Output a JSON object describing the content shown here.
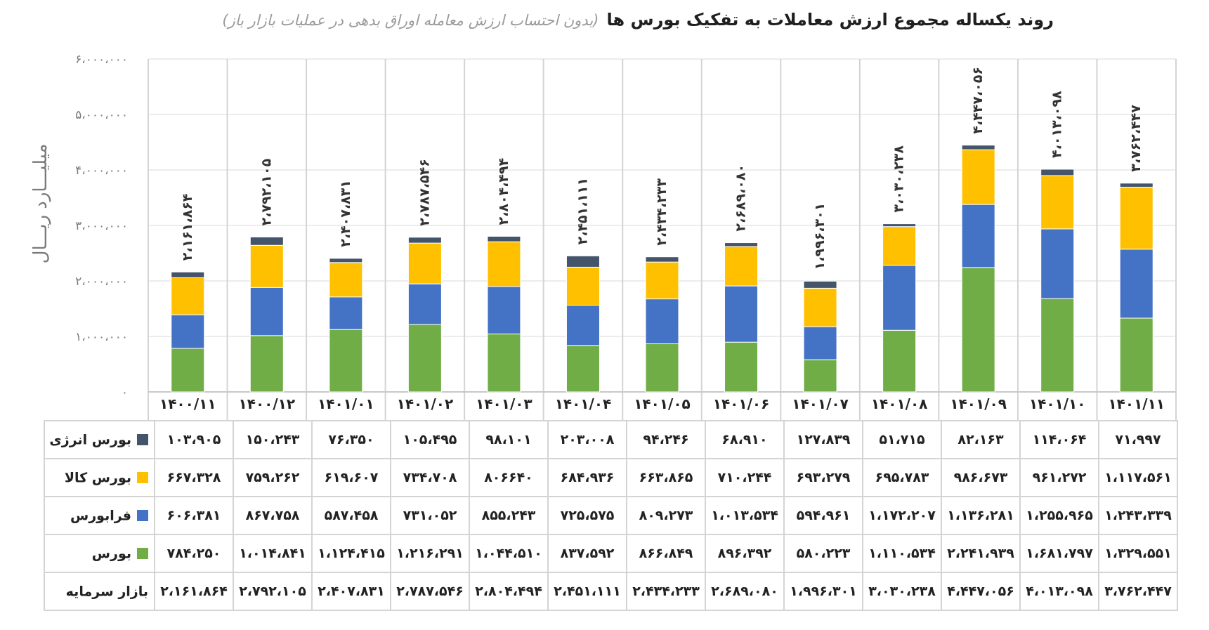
{
  "title": "روند یکساله مجموع ارزش معاملات به تفکیک بورس ها",
  "subtitle": "(بدون احتساب ارزش معامله اوراق بدهی در عملیات بازار باز)",
  "chart_data": {
    "type": "bar",
    "stacked": true,
    "ylabel": "میلیـــارد ریـــال",
    "ylim": [
      0,
      6000000
    ],
    "yticks": [
      0,
      1000000,
      2000000,
      3000000,
      4000000,
      5000000,
      6000000
    ],
    "ytick_labels": [
      "۰",
      "۱،۰۰۰،۰۰۰",
      "۲،۰۰۰،۰۰۰",
      "۳،۰۰۰،۰۰۰",
      "۴،۰۰۰،۰۰۰",
      "۵،۰۰۰،۰۰۰",
      "۶،۰۰۰،۰۰۰"
    ],
    "grid": true,
    "legend": "table-left",
    "categories": [
      "۱۴۰۰/۱۱",
      "۱۴۰۰/۱۲",
      "۱۴۰۱/۰۱",
      "۱۴۰۱/۰۲",
      "۱۴۰۱/۰۳",
      "۱۴۰۱/۰۴",
      "۱۴۰۱/۰۵",
      "۱۴۰۱/۰۶",
      "۱۴۰۱/۰۷",
      "۱۴۰۱/۰۸",
      "۱۴۰۱/۰۹",
      "۱۴۰۱/۱۰",
      "۱۴۰۱/۱۱"
    ],
    "series": [
      {
        "name": "بورس",
        "color": "#70ad47",
        "values": [
          784250,
          1014841,
          1124415,
          1216291,
          1044510,
          837592,
          866849,
          896392,
          580223,
          1110534,
          2241939,
          1681797,
          1329551
        ],
        "labels": [
          "۷۸۴،۲۵۰",
          "۱،۰۱۴،۸۴۱",
          "۱،۱۲۴،۴۱۵",
          "۱،۲۱۶،۲۹۱",
          "۱،۰۴۴،۵۱۰",
          "۸۳۷،۵۹۲",
          "۸۶۶،۸۴۹",
          "۸۹۶،۳۹۲",
          "۵۸۰،۲۲۳",
          "۱،۱۱۰،۵۳۴",
          "۲،۲۴۱،۹۳۹",
          "۱،۶۸۱،۷۹۷",
          "۱،۳۲۹،۵۵۱"
        ]
      },
      {
        "name": "فرابورس",
        "color": "#4472c4",
        "values": [
          606381,
          867758,
          587458,
          731052,
          855243,
          725575,
          809273,
          1013534,
          594961,
          1172207,
          1136281,
          1255965,
          1243339
        ],
        "labels": [
          "۶۰۶،۳۸۱",
          "۸۶۷،۷۵۸",
          "۵۸۷،۴۵۸",
          "۷۳۱،۰۵۲",
          "۸۵۵،۲۴۳",
          "۷۲۵،۵۷۵",
          "۸۰۹،۲۷۳",
          "۱،۰۱۳،۵۳۴",
          "۵۹۴،۹۶۱",
          "۱،۱۷۲،۲۰۷",
          "۱،۱۳۶،۲۸۱",
          "۱،۲۵۵،۹۶۵",
          "۱،۲۴۳،۳۳۹"
        ]
      },
      {
        "name": "بورس کالا",
        "color": "#ffc000",
        "values": [
          667328,
          759262,
          619607,
          734708,
          806640,
          684936,
          663865,
          710244,
          693279,
          695783,
          986673,
          961272,
          1117561
        ],
        "labels": [
          "۶۶۷،۳۲۸",
          "۷۵۹،۲۶۲",
          "۶۱۹،۶۰۷",
          "۷۳۴،۷۰۸",
          "۸۰۶۶۴۰",
          "۶۸۴،۹۳۶",
          "۶۶۳،۸۶۵",
          "۷۱۰،۲۴۴",
          "۶۹۳،۲۷۹",
          "۶۹۵،۷۸۳",
          "۹۸۶،۶۷۳",
          "۹۶۱،۲۷۲",
          "۱،۱۱۷،۵۶۱"
        ]
      },
      {
        "name": "بورس انرژی",
        "color": "#44546a",
        "values": [
          103905,
          150243,
          76350,
          105495,
          98101,
          203008,
          94246,
          68910,
          127839,
          51715,
          82163,
          114064,
          71997
        ],
        "labels": [
          "۱۰۳،۹۰۵",
          "۱۵۰،۲۴۳",
          "۷۶،۳۵۰",
          "۱۰۵،۴۹۵",
          "۹۸،۱۰۱",
          "۲۰۳،۰۰۸",
          "۹۴،۲۴۶",
          "۶۸،۹۱۰",
          "۱۲۷،۸۳۹",
          "۵۱،۷۱۵",
          "۸۲،۱۶۳",
          "۱۱۴،۰۶۴",
          "۷۱،۹۹۷"
        ]
      }
    ],
    "totals": {
      "name": "بازار سرمایه",
      "values": [
        2161864,
        2792105,
        2407831,
        2787546,
        2804494,
        2451111,
        2434233,
        2689080,
        1996301,
        3030238,
        4447056,
        4013098,
        3762447
      ],
      "labels": [
        "۲،۱۶۱،۸۶۴",
        "۲،۷۹۲،۱۰۵",
        "۲،۴۰۷،۸۳۱",
        "۲،۷۸۷،۵۴۶",
        "۲،۸۰۴،۴۹۴",
        "۲،۴۵۱،۱۱۱",
        "۲،۴۳۴،۲۳۳",
        "۲،۶۸۹،۰۸۰",
        "۱،۹۹۶،۳۰۱",
        "۳،۰۳۰،۲۳۸",
        "۴،۴۴۷،۰۵۶",
        "۴،۰۱۳،۰۹۸",
        "۳،۷۶۲،۴۴۷"
      ]
    }
  }
}
